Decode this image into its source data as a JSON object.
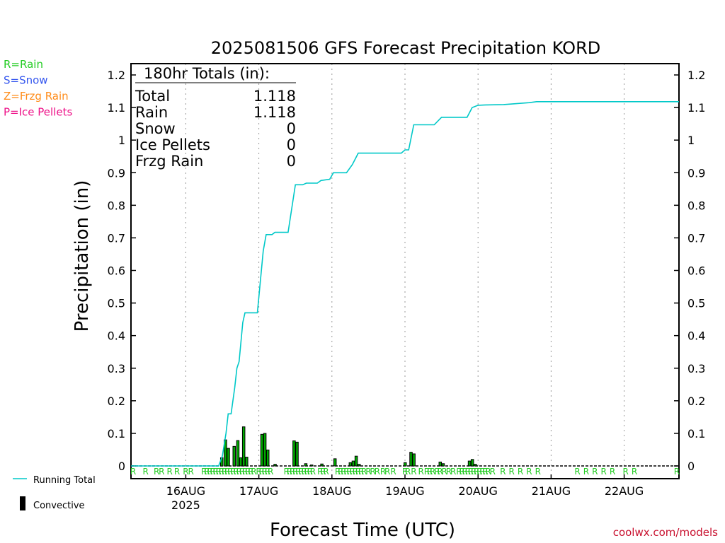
{
  "chart_data": {
    "type": "bar",
    "title": "2025081506 GFS Forecast Precipitation KORD",
    "xlabel": "Forecast Time (UTC)",
    "ylabel": "Precipitation (in)",
    "ylim": [
      0,
      1.2
    ],
    "y_ticks": [
      "0",
      "0.1",
      "0.2",
      "0.3",
      "0.4",
      "0.5",
      "0.6",
      "0.7",
      "0.8",
      "0.9",
      "1",
      "1.1",
      "1.2"
    ],
    "x_unit": "days since 2025-08-16 00Z",
    "xlim": [
      -0.75,
      6.75
    ],
    "x_ticks": [
      {
        "x": 0,
        "label": "16AUG",
        "sublabel": "2025"
      },
      {
        "x": 1,
        "label": "17AUG"
      },
      {
        "x": 2,
        "label": "18AUG"
      },
      {
        "x": 3,
        "label": "19AUG"
      },
      {
        "x": 4,
        "label": "20AUG"
      },
      {
        "x": 5,
        "label": "21AUG"
      },
      {
        "x": 6,
        "label": "22AUG"
      }
    ],
    "grid": "vertical dotted at day boundaries",
    "totals_box": {
      "heading": "180hr Totals (in):",
      "rows": [
        {
          "label": "Total",
          "value": "1.118"
        },
        {
          "label": "Rain",
          "value": "1.118"
        },
        {
          "label": "Snow",
          "value": "0"
        },
        {
          "label": "Ice Pellets",
          "value": "0"
        },
        {
          "label": "Frzg Rain",
          "value": "0"
        }
      ]
    },
    "precip_type_legend": [
      {
        "text": "R=Rain",
        "color": "#22cc22"
      },
      {
        "text": "S=Snow",
        "color": "#3355ee"
      },
      {
        "text": "Z=Frzg Rain",
        "color": "#ff8c1a"
      },
      {
        "text": "P=Ice Pellets",
        "color": "#ee1188"
      }
    ],
    "series": [
      {
        "name": "Running Total",
        "type": "line",
        "color": "#00c8c8",
        "points": [
          [
            -0.75,
            0
          ],
          [
            0.45,
            0
          ],
          [
            0.5,
            0.03
          ],
          [
            0.55,
            0.1
          ],
          [
            0.58,
            0.16
          ],
          [
            0.62,
            0.16
          ],
          [
            0.67,
            0.24
          ],
          [
            0.7,
            0.3
          ],
          [
            0.73,
            0.32
          ],
          [
            0.78,
            0.44
          ],
          [
            0.81,
            0.47
          ],
          [
            0.98,
            0.47
          ],
          [
            1.06,
            0.66
          ],
          [
            1.1,
            0.71
          ],
          [
            1.18,
            0.71
          ],
          [
            1.22,
            0.717
          ],
          [
            1.4,
            0.717
          ],
          [
            1.5,
            0.863
          ],
          [
            1.6,
            0.863
          ],
          [
            1.65,
            0.868
          ],
          [
            1.8,
            0.868
          ],
          [
            1.85,
            0.876
          ],
          [
            1.97,
            0.88
          ],
          [
            2.02,
            0.9
          ],
          [
            2.2,
            0.9
          ],
          [
            2.28,
            0.925
          ],
          [
            2.36,
            0.96
          ],
          [
            2.45,
            0.96
          ],
          [
            2.95,
            0.96
          ],
          [
            3.0,
            0.97
          ],
          [
            3.05,
            0.97
          ],
          [
            3.12,
            1.047
          ],
          [
            3.4,
            1.047
          ],
          [
            3.5,
            1.07
          ],
          [
            3.85,
            1.07
          ],
          [
            3.92,
            1.1
          ],
          [
            4.0,
            1.107
          ],
          [
            4.1,
            1.108
          ],
          [
            4.35,
            1.109
          ],
          [
            4.7,
            1.115
          ],
          [
            4.8,
            1.118
          ],
          [
            6.75,
            1.118
          ]
        ]
      },
      {
        "name": "Convective",
        "type": "bar",
        "color": "#00aa00",
        "bars": [
          [
            0.49,
            0.025
          ],
          [
            0.54,
            0.08
          ],
          [
            0.58,
            0.054
          ],
          [
            0.66,
            0.06
          ],
          [
            0.71,
            0.078
          ],
          [
            0.75,
            0.025
          ],
          [
            0.79,
            0.12
          ],
          [
            0.83,
            0.027
          ],
          [
            1.04,
            0.097
          ],
          [
            1.08,
            0.1
          ],
          [
            1.12,
            0.049
          ],
          [
            1.22,
            0.005
          ],
          [
            1.48,
            0.077
          ],
          [
            1.52,
            0.073
          ],
          [
            1.64,
            0.007
          ],
          [
            1.72,
            0.003
          ],
          [
            1.86,
            0.006
          ],
          [
            2.04,
            0.022
          ],
          [
            2.25,
            0.01
          ],
          [
            2.29,
            0.015
          ],
          [
            2.33,
            0.03
          ],
          [
            2.37,
            0.005
          ],
          [
            3.0,
            0.01
          ],
          [
            3.08,
            0.042
          ],
          [
            3.12,
            0.037
          ],
          [
            3.48,
            0.012
          ],
          [
            3.52,
            0.007
          ],
          [
            3.88,
            0.015
          ],
          [
            3.92,
            0.02
          ],
          [
            3.96,
            0.005
          ]
        ]
      }
    ],
    "precip_type_row": [
      -0.72,
      -0.55,
      -0.4,
      -0.33,
      -0.22,
      -0.12,
      0.0,
      0.07,
      0.25,
      0.29,
      0.33,
      0.37,
      0.41,
      0.45,
      0.49,
      0.53,
      0.57,
      0.61,
      0.65,
      0.69,
      0.73,
      0.77,
      0.81,
      0.85,
      0.89,
      0.93,
      1.0,
      1.04,
      1.08,
      1.12,
      1.16,
      1.38,
      1.42,
      1.46,
      1.5,
      1.54,
      1.58,
      1.62,
      1.66,
      1.7,
      1.74,
      1.84,
      1.88,
      1.92,
      2.08,
      2.12,
      2.16,
      2.2,
      2.24,
      2.28,
      2.32,
      2.36,
      2.4,
      2.44,
      2.5,
      2.56,
      2.62,
      2.7,
      2.76,
      2.84,
      3.0,
      3.04,
      3.12,
      3.22,
      3.3,
      3.34,
      3.38,
      3.44,
      3.48,
      3.54,
      3.6,
      3.66,
      3.74,
      3.78,
      3.82,
      3.86,
      3.9,
      3.94,
      3.98,
      4.02,
      4.06,
      4.1,
      4.14,
      4.2,
      4.34,
      4.46,
      4.58,
      4.7,
      4.82,
      5.36,
      5.48,
      5.6,
      5.72,
      5.84,
      6.02,
      6.14,
      6.72
    ],
    "footer_legend": [
      {
        "label": "Running Total",
        "symbol": "line",
        "color": "#00c8c8"
      },
      {
        "label": "Convective",
        "symbol": "bar",
        "color": "#000000"
      }
    ],
    "watermark": "coolwx.com/models"
  }
}
